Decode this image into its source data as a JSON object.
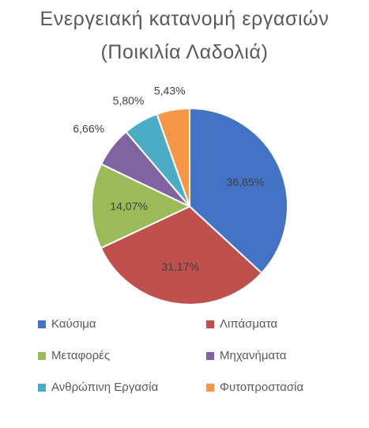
{
  "chart_data": {
    "type": "pie",
    "title": "Ενεργειακή κατανομή εργασιών",
    "subtitle": "(Ποικιλία Λαδολιά)",
    "categories": [
      "Καύσιμα",
      "Λιπάσματα",
      "Μεταφορές",
      "Μηχανήματα",
      "Ανθρώπινη Εργασία",
      "Φυτοπροστασία"
    ],
    "values": [
      36.85,
      31.17,
      14.07,
      6.66,
      5.8,
      5.43
    ],
    "labels": [
      "36,85%",
      "31,17%",
      "14,07%",
      "6,66%",
      "5,80%",
      "5,43%"
    ],
    "colors": [
      "#4472C4",
      "#C0504D",
      "#9BBB59",
      "#8064A2",
      "#4BACC6",
      "#F79646"
    ],
    "legend_position": "bottom"
  }
}
